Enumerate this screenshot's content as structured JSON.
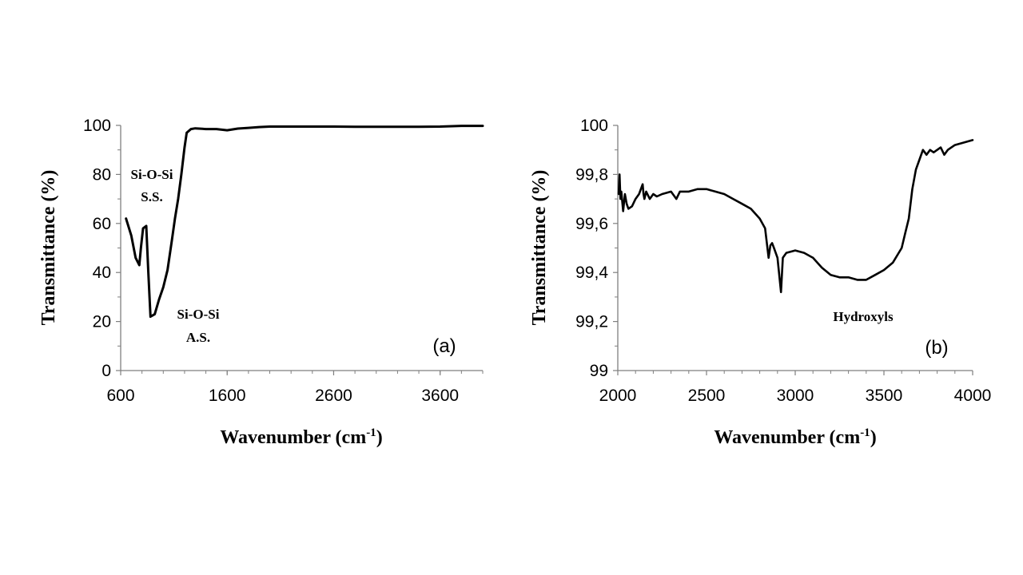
{
  "chart_data": [
    {
      "type": "line",
      "panel_label": "(a)",
      "xlabel": "Wavenumber (cm",
      "xlabel_sup": "-1",
      "xlabel_end": ")",
      "ylabel": "Transmittance (%)",
      "xlim": [
        600,
        4000
      ],
      "ylim": [
        0,
        100
      ],
      "xticks": [
        600,
        1600,
        2600,
        3600
      ],
      "yticks": [
        0,
        20,
        40,
        60,
        80,
        100
      ],
      "grid": false,
      "series": [
        {
          "x": [
            650,
            700,
            740,
            775,
            790,
            810,
            840,
            860,
            880,
            920,
            960,
            1000,
            1040,
            1080,
            1110,
            1140,
            1170,
            1200,
            1220,
            1260,
            1300,
            1400,
            1500,
            1600,
            1700,
            1800,
            1900,
            2000,
            2200,
            2400,
            2600,
            2800,
            3000,
            3200,
            3400,
            3600,
            3800,
            4000
          ],
          "y": [
            62,
            55,
            46,
            43,
            50,
            58,
            59,
            40,
            22,
            23,
            29,
            34,
            41,
            53,
            62,
            70,
            80,
            91,
            97,
            98.5,
            98.8,
            98.5,
            98.5,
            98,
            98.7,
            99,
            99.3,
            99.5,
            99.5,
            99.5,
            99.5,
            99.4,
            99.4,
            99.4,
            99.4,
            99.5,
            99.8,
            99.8
          ]
        }
      ],
      "annotations": [
        {
          "lines": [
            "Si-O-Si",
            "S.S."
          ]
        },
        {
          "lines": [
            "Si-O-Si",
            "A.S."
          ]
        }
      ]
    },
    {
      "type": "line",
      "panel_label": "(b)",
      "xlabel": "Wavenumber (cm",
      "xlabel_sup": "-1",
      "xlabel_end": ")",
      "ylabel": "Transmittance (%)",
      "xlim": [
        2000,
        4000
      ],
      "ylim": [
        99,
        100
      ],
      "xticks": [
        2000,
        2500,
        3000,
        3500,
        4000
      ],
      "yticks": [
        99,
        99.2,
        99.4,
        99.6,
        99.8,
        100
      ],
      "ytick_labels": [
        "99",
        "99,2",
        "99,4",
        "99,6",
        "99,8",
        "100"
      ],
      "grid": false,
      "series": [
        {
          "x": [
            2005,
            2010,
            2015,
            2020,
            2030,
            2040,
            2050,
            2060,
            2080,
            2100,
            2120,
            2140,
            2145,
            2150,
            2160,
            2180,
            2200,
            2220,
            2250,
            2300,
            2330,
            2350,
            2400,
            2450,
            2500,
            2550,
            2600,
            2650,
            2700,
            2750,
            2800,
            2830,
            2850,
            2860,
            2870,
            2880,
            2900,
            2920,
            2930,
            2950,
            3000,
            3050,
            3100,
            3150,
            3200,
            3250,
            3300,
            3350,
            3400,
            3450,
            3500,
            3550,
            3600,
            3620,
            3640,
            3650,
            3660,
            3680,
            3700,
            3720,
            3740,
            3760,
            3780,
            3800,
            3820,
            3840,
            3860,
            3880,
            3900,
            3950,
            4000
          ],
          "y": [
            99.72,
            99.8,
            99.7,
            99.73,
            99.65,
            99.72,
            99.68,
            99.66,
            99.67,
            99.7,
            99.72,
            99.76,
            99.72,
            99.7,
            99.73,
            99.7,
            99.72,
            99.71,
            99.72,
            99.73,
            99.7,
            99.73,
            99.73,
            99.74,
            99.74,
            99.73,
            99.72,
            99.7,
            99.68,
            99.66,
            99.62,
            99.58,
            99.46,
            99.51,
            99.52,
            99.5,
            99.46,
            99.32,
            99.46,
            99.48,
            99.49,
            99.48,
            99.46,
            99.42,
            99.39,
            99.38,
            99.38,
            99.37,
            99.37,
            99.39,
            99.41,
            99.44,
            99.5,
            99.56,
            99.62,
            99.68,
            99.74,
            99.82,
            99.86,
            99.9,
            99.88,
            99.9,
            99.89,
            99.9,
            99.91,
            99.88,
            99.9,
            99.91,
            99.92,
            99.93,
            99.94
          ]
        }
      ],
      "annotations": [
        {
          "lines": [
            "Hydroxyls"
          ]
        }
      ]
    }
  ]
}
